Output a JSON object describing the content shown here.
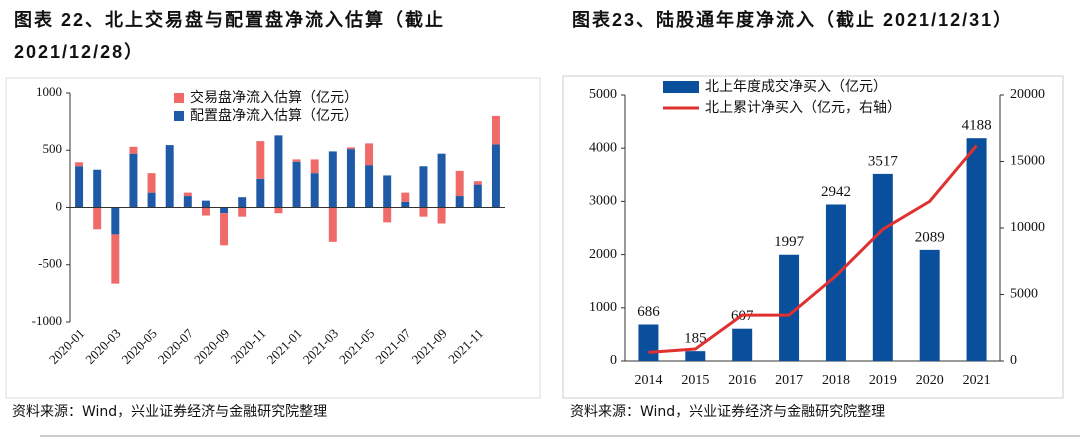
{
  "chart_data": [
    {
      "type": "stacked_bar",
      "title": "图表 22、北上交易盘与配置盘净流入估算（截止 2021/12/28）",
      "source": "资料来源：Wind，兴业证券经济与金融研究院整理",
      "categories": [
        "2020-01",
        null,
        "2020-03",
        null,
        "2020-05",
        null,
        "2020-07",
        null,
        "2020-09",
        null,
        "2020-11",
        null,
        "2021-01",
        null,
        "2021-03",
        null,
        "2021-05",
        null,
        "2021-07",
        null,
        "2021-09",
        null,
        "2021-11",
        null
      ],
      "series": [
        {
          "name": "配置盘净流入估算（亿元）",
          "color": "#1f5aa6",
          "values": [
            360,
            330,
            -235,
            470,
            130,
            545,
            100,
            60,
            -50,
            90,
            250,
            630,
            400,
            300,
            490,
            510,
            370,
            280,
            50,
            360,
            470,
            100,
            200,
            550
          ]
        },
        {
          "name": "交易盘净流入估算（亿元）",
          "color": "#f06a6a",
          "values": [
            35,
            -190,
            -430,
            60,
            170,
            0,
            30,
            -70,
            -280,
            -80,
            330,
            -50,
            20,
            120,
            -300,
            15,
            190,
            -130,
            80,
            -80,
            -140,
            220,
            30,
            250
          ]
        }
      ],
      "ylim": [
        -1000,
        1000
      ],
      "yticks": [
        -1000,
        -500,
        0,
        500,
        1000
      ]
    },
    {
      "type": "bar_line",
      "title": "图表23、陆股通年度净流入（截止 2021/12/31）",
      "source": "资料来源：Wind，兴业证券经济与金融研究院整理",
      "categories": [
        "2014",
        "2015",
        "2016",
        "2017",
        "2018",
        "2019",
        "2020",
        "2021"
      ],
      "series": [
        {
          "name": "北上年度成交净买入（亿元）",
          "type": "bar",
          "color": "#0a4f9c",
          "values": [
            686,
            185,
            607,
            1997,
            2942,
            3517,
            2089,
            4188
          ]
        },
        {
          "name": "北上累计净买入（亿元，右轴）",
          "type": "line",
          "axis": "y2",
          "color": "#e03030",
          "values": [
            650,
            900,
            3450,
            3450,
            6400,
            9900,
            12000,
            16200
          ]
        }
      ],
      "ylim": [
        0,
        5000
      ],
      "yticks": [
        0,
        1000,
        2000,
        3000,
        4000,
        5000
      ],
      "y2lim": [
        0,
        20000
      ],
      "y2ticks": [
        0,
        5000,
        10000,
        15000,
        20000
      ]
    }
  ]
}
